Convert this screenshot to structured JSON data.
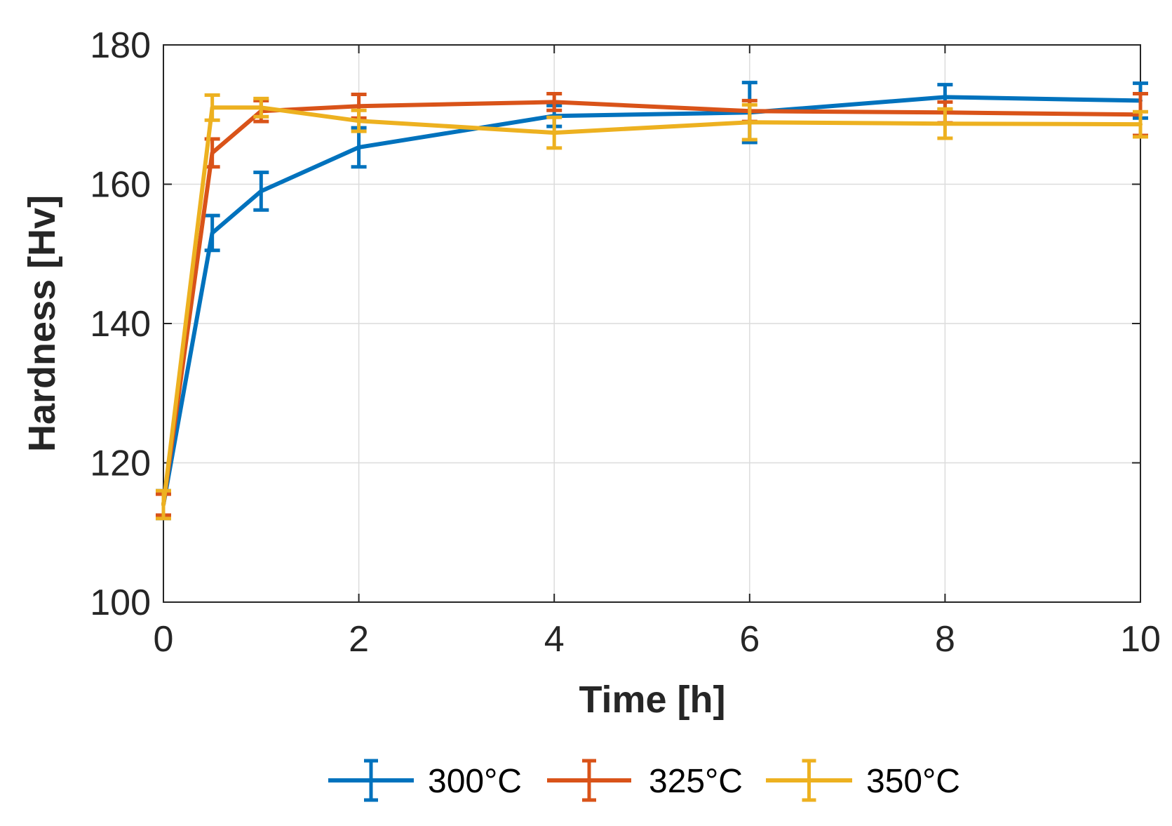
{
  "chart_data": {
    "type": "line",
    "title": "",
    "xlabel": "Time [h]",
    "ylabel": "Hardness [Hv]",
    "xlim": [
      0,
      10
    ],
    "ylim": [
      100,
      180
    ],
    "xticks": [
      0,
      2,
      4,
      6,
      8,
      10
    ],
    "yticks": [
      100,
      120,
      140,
      160,
      180
    ],
    "grid": true,
    "legend_position": "bottom",
    "series": [
      {
        "name": "300°C",
        "color": "#0072BD",
        "points": [
          {
            "x": 0,
            "y": 114,
            "err": 2
          },
          {
            "x": 0.5,
            "y": 153,
            "err": 2.5
          },
          {
            "x": 1,
            "y": 159,
            "err": 2.7
          },
          {
            "x": 2,
            "y": 165.3,
            "err": 2.8
          },
          {
            "x": 4,
            "y": 169.8,
            "err": 1.5
          },
          {
            "x": 6,
            "y": 170.3,
            "err": 4.3
          },
          {
            "x": 8,
            "y": 172.5,
            "err": 1.8
          },
          {
            "x": 10,
            "y": 172,
            "err": 2.5
          }
        ]
      },
      {
        "name": "325°C",
        "color": "#D95319",
        "points": [
          {
            "x": 0,
            "y": 114,
            "err": 1.5
          },
          {
            "x": 0.5,
            "y": 164.5,
            "err": 2
          },
          {
            "x": 1,
            "y": 170.5,
            "err": 1.5
          },
          {
            "x": 2,
            "y": 171.2,
            "err": 1.7
          },
          {
            "x": 4,
            "y": 171.8,
            "err": 1.2
          },
          {
            "x": 6,
            "y": 170.5,
            "err": 1.5
          },
          {
            "x": 8,
            "y": 170.3,
            "err": 1.5
          },
          {
            "x": 10,
            "y": 170,
            "err": 3
          }
        ]
      },
      {
        "name": "350°C",
        "color": "#EDB120",
        "points": [
          {
            "x": 0,
            "y": 114,
            "err": 2
          },
          {
            "x": 0.5,
            "y": 171,
            "err": 1.8
          },
          {
            "x": 1,
            "y": 171,
            "err": 1.3
          },
          {
            "x": 2,
            "y": 169.1,
            "err": 1.5
          },
          {
            "x": 4,
            "y": 167.4,
            "err": 2.2
          },
          {
            "x": 6,
            "y": 168.9,
            "err": 2.5
          },
          {
            "x": 8,
            "y": 168.7,
            "err": 2.1
          },
          {
            "x": 10,
            "y": 168.6,
            "err": 1.8
          }
        ]
      }
    ]
  }
}
